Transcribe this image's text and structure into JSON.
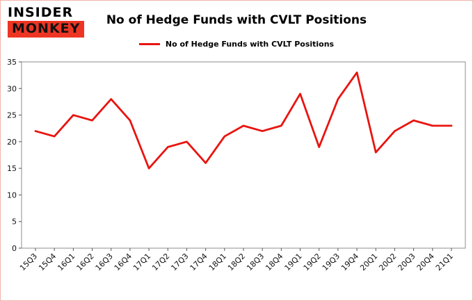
{
  "logo": {
    "line1": "INSIDER",
    "line2": "MONKEY"
  },
  "title": "No of Hedge Funds with CVLT Positions",
  "legend": {
    "label": "No of Hedge Funds with CVLT Positions"
  },
  "colors": {
    "line": "#e8140f",
    "logo_red": "#ee3524",
    "panel_border": "#f2b4ab",
    "axis": "#8c8c8c",
    "tick_text": "#111111"
  },
  "chart_data": {
    "type": "line",
    "title": "No of Hedge Funds with CVLT Positions",
    "categories": [
      "15Q3",
      "15Q4",
      "16Q1",
      "16Q2",
      "16Q3",
      "16Q4",
      "17Q1",
      "17Q2",
      "17Q3",
      "17Q4",
      "18Q1",
      "18Q2",
      "18Q3",
      "18Q4",
      "19Q1",
      "19Q2",
      "19Q3",
      "19Q4",
      "20Q1",
      "20Q2",
      "20Q3",
      "20Q4",
      "21Q1"
    ],
    "series": [
      {
        "name": "No of Hedge Funds with CVLT Positions",
        "color": "#e8140f",
        "values": [
          22,
          21,
          25,
          24,
          28,
          24,
          15,
          19,
          20,
          16,
          21,
          23,
          22,
          23,
          29,
          19,
          28,
          33,
          18,
          22,
          24,
          23,
          23
        ]
      }
    ],
    "xlabel": "",
    "ylabel": "",
    "ylim": [
      0,
      35
    ],
    "yticks": [
      0,
      5,
      10,
      15,
      20,
      25,
      30,
      35
    ],
    "grid": false,
    "legend_position": "top-center"
  }
}
